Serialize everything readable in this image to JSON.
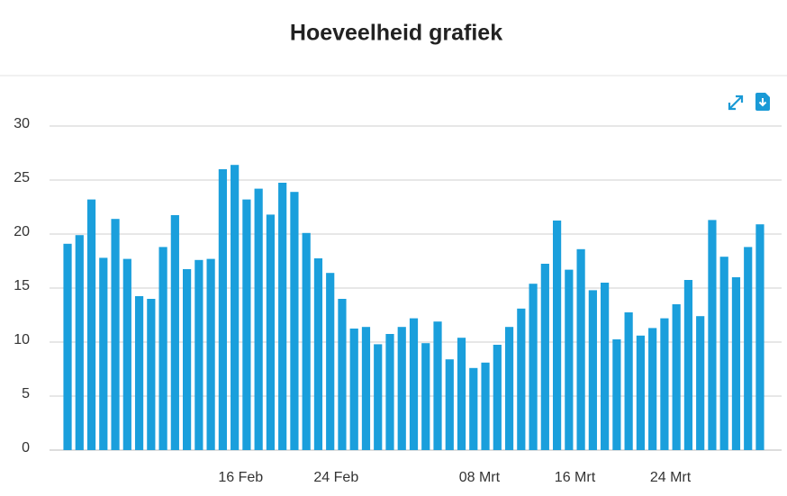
{
  "chart_data": {
    "type": "bar",
    "title": "Hoeveelheid grafiek",
    "categories": [
      null,
      null,
      null,
      null,
      null,
      null,
      null,
      null,
      null,
      null,
      null,
      null,
      null,
      null,
      "16 Feb",
      null,
      null,
      null,
      null,
      null,
      null,
      null,
      "24 Feb",
      null,
      null,
      null,
      null,
      null,
      null,
      null,
      null,
      null,
      null,
      null,
      "08 Mrt",
      null,
      null,
      null,
      null,
      null,
      null,
      null,
      "16 Mrt",
      null,
      null,
      null,
      null,
      null,
      null,
      null,
      "24 Mrt",
      null,
      null,
      null,
      null,
      null,
      null,
      null,
      null
    ],
    "values": [
      19.1,
      19.9,
      23.2,
      17.8,
      21.4,
      17.7,
      14.25,
      14.0,
      18.8,
      21.75,
      16.75,
      17.6,
      17.7,
      26.0,
      26.4,
      23.2,
      24.2,
      21.8,
      24.75,
      23.9,
      20.1,
      17.75,
      16.4,
      14.0,
      11.25,
      11.4,
      9.8,
      10.75,
      11.4,
      12.2,
      9.9,
      11.9,
      8.4,
      10.4,
      7.6,
      8.1,
      9.75,
      11.4,
      13.1,
      15.4,
      17.25,
      21.25,
      16.7,
      18.6,
      14.8,
      15.5,
      10.25,
      12.75,
      10.6,
      11.3,
      12.2,
      13.5,
      15.75,
      12.4,
      21.3,
      17.9,
      16.0,
      18.8,
      20.9
    ],
    "color": "#1a9fdc",
    "ylim": [
      0,
      30
    ],
    "yticks": [
      0,
      5,
      10,
      15,
      20,
      25,
      30
    ],
    "grid": true
  }
}
